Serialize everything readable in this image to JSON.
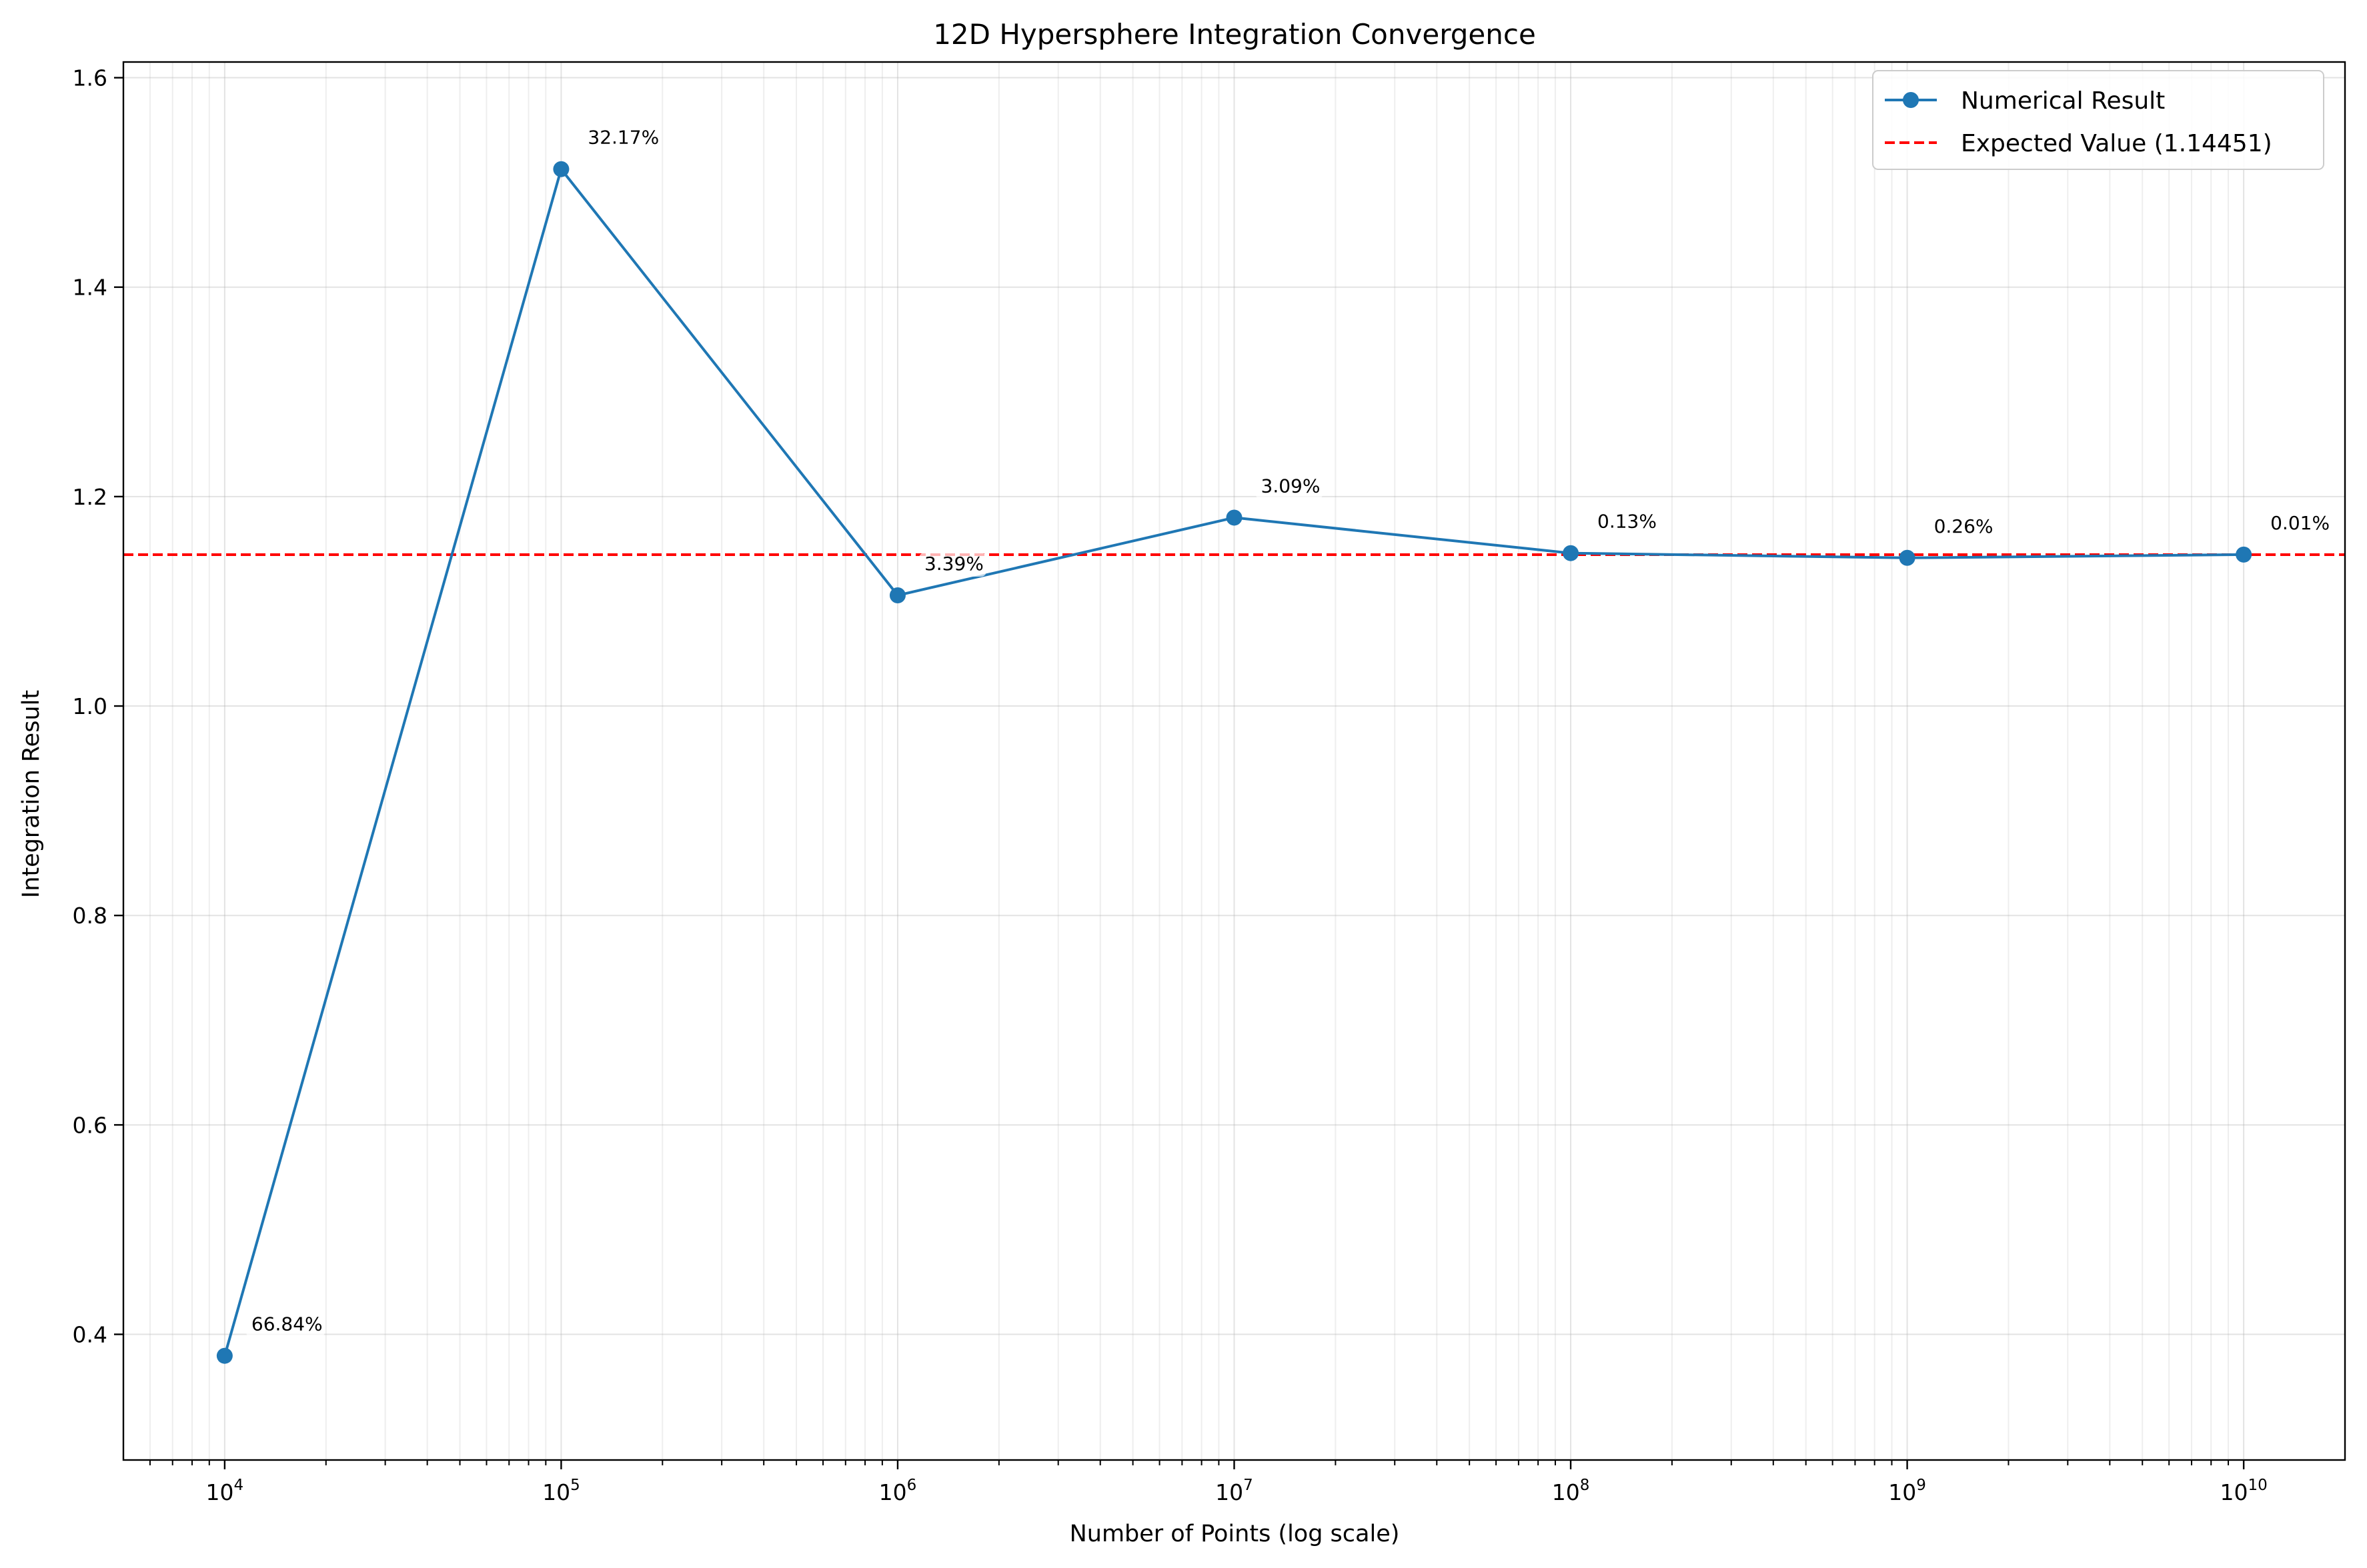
{
  "chart_data": {
    "type": "line",
    "title": "12D Hypersphere Integration Convergence",
    "xlabel": "Number of Points (log scale)",
    "ylabel": "Integration Result",
    "xscale": "log",
    "xlim": [
      5000,
      20000000000
    ],
    "ylim": [
      0.28,
      1.615
    ],
    "grid": true,
    "legend_position": "top-right",
    "x_ticks": [
      {
        "value": 10000,
        "base": "10",
        "exp": "4"
      },
      {
        "value": 100000,
        "base": "10",
        "exp": "5"
      },
      {
        "value": 1000000,
        "base": "10",
        "exp": "6"
      },
      {
        "value": 10000000,
        "base": "10",
        "exp": "7"
      },
      {
        "value": 100000000,
        "base": "10",
        "exp": "8"
      },
      {
        "value": 1000000000,
        "base": "10",
        "exp": "9"
      },
      {
        "value": 10000000000,
        "base": "10",
        "exp": "10"
      }
    ],
    "y_ticks": [
      {
        "value": 0.4,
        "label": "0.4"
      },
      {
        "value": 0.6,
        "label": "0.6"
      },
      {
        "value": 0.8,
        "label": "0.8"
      },
      {
        "value": 1.0,
        "label": "1.0"
      },
      {
        "value": 1.2,
        "label": "1.2"
      },
      {
        "value": 1.4,
        "label": "1.4"
      },
      {
        "value": 1.6,
        "label": "1.6"
      }
    ],
    "series": [
      {
        "name": "Numerical Result",
        "color": "#1f77b4",
        "x": [
          10000,
          100000,
          1000000,
          10000000,
          100000000,
          1000000000,
          10000000000
        ],
        "y": [
          0.3795,
          1.5127,
          1.1057,
          1.1799,
          1.146,
          1.1415,
          1.1446
        ],
        "annotations": [
          "66.84%",
          "32.17%",
          "3.39%",
          "3.09%",
          "0.13%",
          "0.26%",
          "0.01%"
        ]
      }
    ],
    "reference_line": {
      "name": "Expected Value (1.14451)",
      "y": 1.14451,
      "color": "#ff0000",
      "style": "dashed"
    }
  }
}
